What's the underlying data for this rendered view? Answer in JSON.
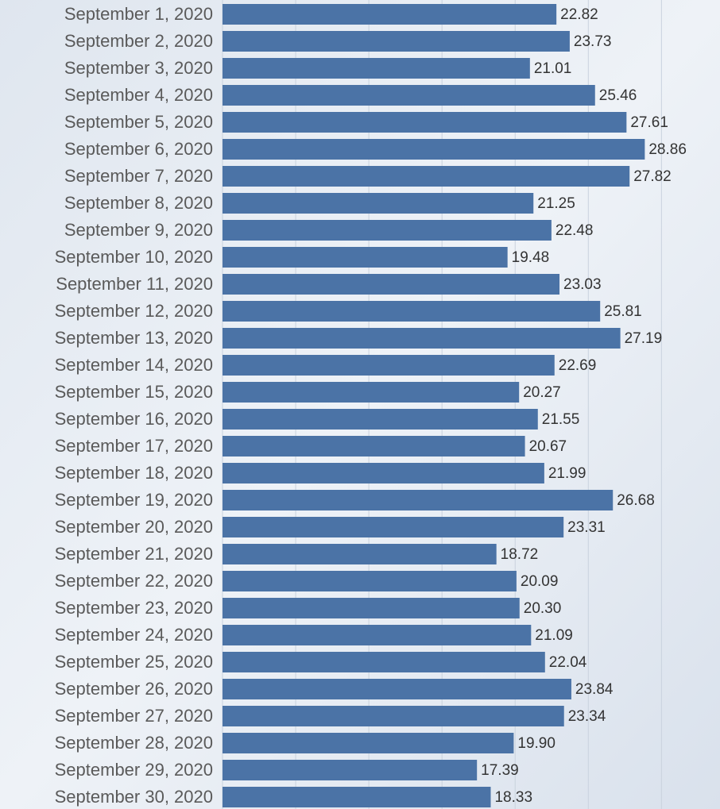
{
  "chart_data": {
    "type": "barh",
    "categories": [
      "September 1, 2020",
      "September 2, 2020",
      "September 3, 2020",
      "September 4, 2020",
      "September 5, 2020",
      "September 6, 2020",
      "September 7, 2020",
      "September 8, 2020",
      "September 9, 2020",
      "September 10, 2020",
      "September 11, 2020",
      "September 12, 2020",
      "September 13, 2020",
      "September 14, 2020",
      "September 15, 2020",
      "September 16, 2020",
      "September 17, 2020",
      "September 18, 2020",
      "September 19, 2020",
      "September 20, 2020",
      "September 21, 2020",
      "September 22, 2020",
      "September 23, 2020",
      "September 24, 2020",
      "September 25, 2020",
      "September 26, 2020",
      "September 27, 2020",
      "September 28, 2020",
      "September 29, 2020",
      "September 30, 2020"
    ],
    "values": [
      22.82,
      23.73,
      21.01,
      25.46,
      27.61,
      28.86,
      27.82,
      21.25,
      22.48,
      19.48,
      23.03,
      25.81,
      27.19,
      22.69,
      20.27,
      21.55,
      20.67,
      21.99,
      26.68,
      23.31,
      18.72,
      20.09,
      20.3,
      21.09,
      22.04,
      23.84,
      23.34,
      19.9,
      17.39,
      18.33
    ],
    "value_labels": [
      "22.82",
      "23.73",
      "21.01",
      "25.46",
      "27.61",
      "28.86",
      "27.82",
      "21.25",
      "22.48",
      "19.48",
      "23.03",
      "25.81",
      "27.19",
      "22.69",
      "20.27",
      "21.55",
      "20.67",
      "21.99",
      "26.68",
      "23.31",
      "18.72",
      "20.09",
      "20.30",
      "21.09",
      "22.04",
      "23.84",
      "23.34",
      "19.90",
      "17.39",
      "18.33"
    ],
    "color": "#4b73a6",
    "xlim": [
      0,
      34
    ],
    "xticks": [
      0,
      5,
      10,
      15,
      20,
      25,
      30
    ],
    "grid": true
  }
}
